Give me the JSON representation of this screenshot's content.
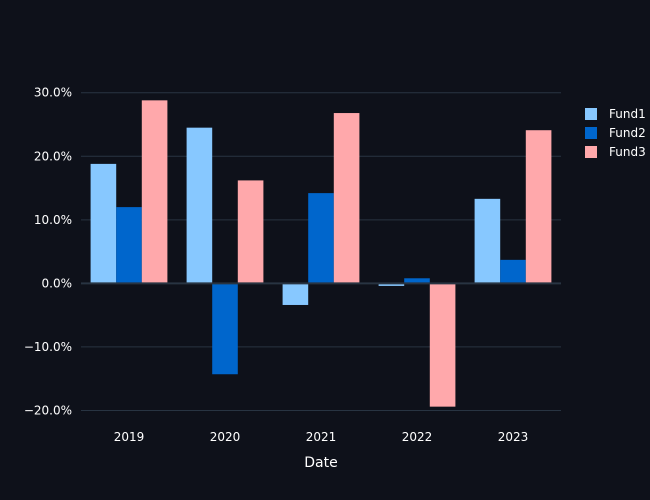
{
  "chart_data": {
    "type": "bar",
    "title": "",
    "xlabel": "Date",
    "ylabel": "",
    "categories": [
      "2019",
      "2020",
      "2021",
      "2022",
      "2023"
    ],
    "series": [
      {
        "name": "Fund1",
        "color": "#87c8ff",
        "values": [
          18.8,
          24.5,
          -3.4,
          -0.4,
          13.3
        ]
      },
      {
        "name": "Fund2",
        "color": "#0066cc",
        "values": [
          12.0,
          -14.3,
          14.2,
          0.8,
          3.7
        ]
      },
      {
        "name": "Fund3",
        "color": "#ffa8ab",
        "values": [
          28.8,
          16.2,
          26.8,
          -19.4,
          24.1
        ]
      }
    ],
    "ylim": [
      -21.5,
      32
    ],
    "y_ticks": [
      -20,
      -10,
      0,
      10,
      20,
      30
    ],
    "y_tick_labels": [
      "−20.0%",
      "−10.0%",
      "0.0%",
      "10.0%",
      "20.0%",
      "30.0%"
    ],
    "grid": true,
    "legend_position": "top-right",
    "colors": {
      "background": "#0e111a",
      "grid": "#283442",
      "text": "#ffffff"
    }
  }
}
